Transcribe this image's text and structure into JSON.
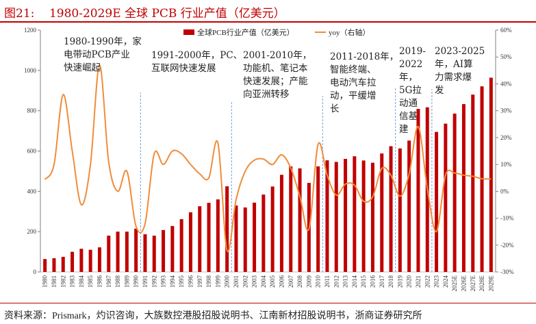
{
  "header": {
    "title": "图21:    1980-2029E 全球 PCB 行业产值（亿美元）"
  },
  "legend": {
    "bar_label": "全球PCB行业产值（亿美元）",
    "line_label": "yoy（右轴）"
  },
  "annotations": [
    {
      "id": "era-1980s",
      "text": "1980-1990年，家\n电带动PCB产业\n快速崛起"
    },
    {
      "id": "era-1990s",
      "text": "1991-2000年，PC、\n互联网快速发展"
    },
    {
      "id": "era-2000s",
      "text": "2001-2010年，\n功能机、笔记本\n快速发展；产能\n向亚洲转移"
    },
    {
      "id": "era-2010s",
      "text": "2011-2018年，\n智能终端、\n电动汽车拉\n动，平缓增\n长"
    },
    {
      "id": "era-5g",
      "text": "2019-\n2022\n年，\n5G拉\n动通\n信基\n建"
    },
    {
      "id": "era-ai",
      "text": "2023-2025\n年，AI算\n力需求爆\n发"
    }
  ],
  "footer": {
    "source": "资料来源：Prismark，灼识咨询，大族数控港股招股说明书、江南新材招股说明书，浙商证券研究所"
  },
  "colors": {
    "title": "#c00000",
    "bar": "#c00000",
    "line": "#f08c3a",
    "divider": "#6f9fd8",
    "axis": "#7f7f7f"
  },
  "chart_data": {
    "type": "bar+line",
    "title": "1980-2029E 全球 PCB 行业产值（亿美元）",
    "xlabel": "",
    "ylabel_left": "亿美元",
    "ylabel_right": "yoy",
    "ylim_left": [
      0,
      1200
    ],
    "yticks_left": [
      "0",
      "200",
      "400",
      "600",
      "800",
      "1000",
      "1200"
    ],
    "ylim_right": [
      -30,
      60
    ],
    "yticks_right": [
      "-30%",
      "-20%",
      "-10%",
      "0%",
      "10%",
      "20%",
      "30%",
      "40%",
      "50%",
      "60%"
    ],
    "legend_position": "top",
    "grid": false,
    "categories": [
      "1980",
      "1981",
      "1982",
      "1983",
      "1984",
      "1985",
      "1986",
      "1987",
      "1988",
      "1989",
      "1990",
      "1991",
      "1992",
      "1993",
      "1994",
      "1995",
      "1996",
      "1997",
      "1998",
      "1999",
      "2000",
      "2001",
      "2002",
      "2003",
      "2004",
      "2005",
      "2006",
      "2007",
      "2008",
      "2009",
      "2010",
      "2011",
      "2012",
      "2013",
      "2014",
      "2015",
      "2016",
      "2017",
      "2018",
      "2019",
      "2020",
      "2021",
      "2022",
      "2023",
      "2024",
      "2025E",
      "2026E",
      "2027E",
      "2028E",
      "2029E"
    ],
    "series": [
      {
        "name": "全球PCB行业产值（亿美元）",
        "type": "bar",
        "axis": "left",
        "values": [
          64,
          68,
          75,
          100,
          115,
          110,
          122,
          180,
          200,
          200,
          215,
          187,
          180,
          208,
          228,
          262,
          296,
          326,
          343,
          360,
          425,
          330,
          320,
          344,
          384,
          424,
          482,
          524,
          514,
          442,
          524,
          554,
          546,
          561,
          574,
          553,
          542,
          588,
          624,
          613,
          652,
          809,
          817,
          695,
          736,
          786,
          833,
          880,
          921,
          964
        ]
      },
      {
        "name": "yoy（右轴）",
        "type": "line",
        "axis": "right",
        "values": [
          4.4,
          10.0,
          36.0,
          15.0,
          -5.0,
          10.0,
          47.0,
          11.0,
          0.0,
          7.5,
          -13.0,
          -12.0,
          14.0,
          10.0,
          15.0,
          14.0,
          10.0,
          6.5,
          5.0,
          18.0,
          -22.0,
          -3.0,
          7.5,
          11.6,
          12.0,
          10.0,
          13.6,
          8.7,
          -1.9,
          -14.0,
          17.5,
          6.0,
          -1.4,
          2.7,
          2.3,
          -3.7,
          -2.0,
          8.5,
          6.0,
          -1.8,
          6.4,
          24.1,
          1.0,
          -15.0,
          6.0,
          6.8,
          6.0,
          5.6,
          4.7,
          4.6
        ]
      }
    ],
    "era_dividers_after": [
      "1990",
      "2000",
      "2010",
      "2018",
      "2022"
    ]
  }
}
